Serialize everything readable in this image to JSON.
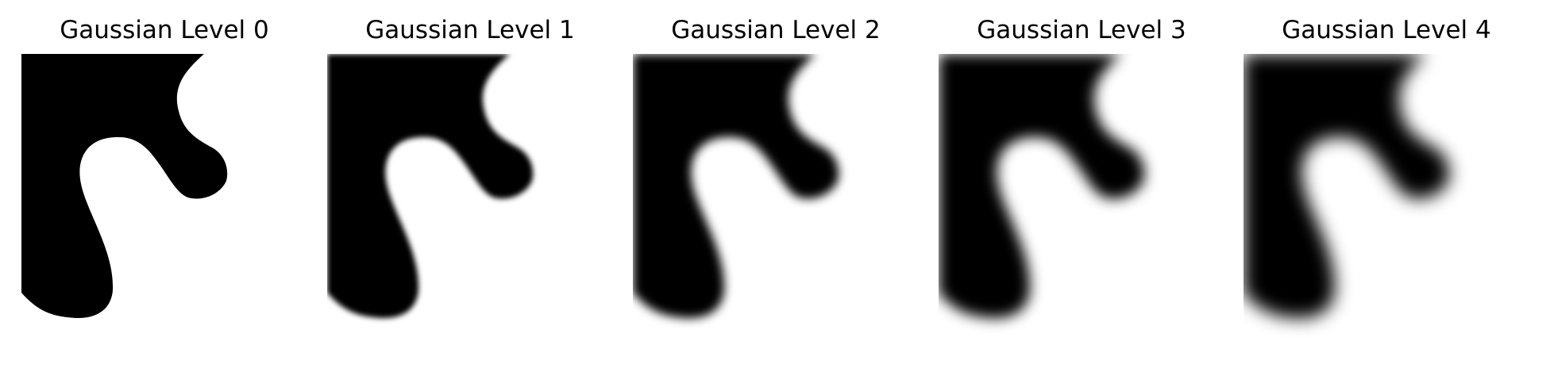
{
  "figure": {
    "panels": [
      {
        "title": "Gaussian Level 0",
        "blur_level": 0,
        "fill_color": "#000000",
        "background_color": "#ffffff"
      },
      {
        "title": "Gaussian Level 1",
        "blur_level": 1,
        "fill_color": "#000000",
        "background_color": "#ffffff"
      },
      {
        "title": "Gaussian Level 2",
        "blur_level": 2,
        "fill_color": "#000000",
        "background_color": "#ffffff"
      },
      {
        "title": "Gaussian Level 3",
        "blur_level": 3,
        "fill_color": "#000000",
        "background_color": "#ffffff"
      },
      {
        "title": "Gaussian Level 4",
        "blur_level": 4,
        "fill_color": "#000000",
        "background_color": "#ffffff"
      }
    ]
  }
}
